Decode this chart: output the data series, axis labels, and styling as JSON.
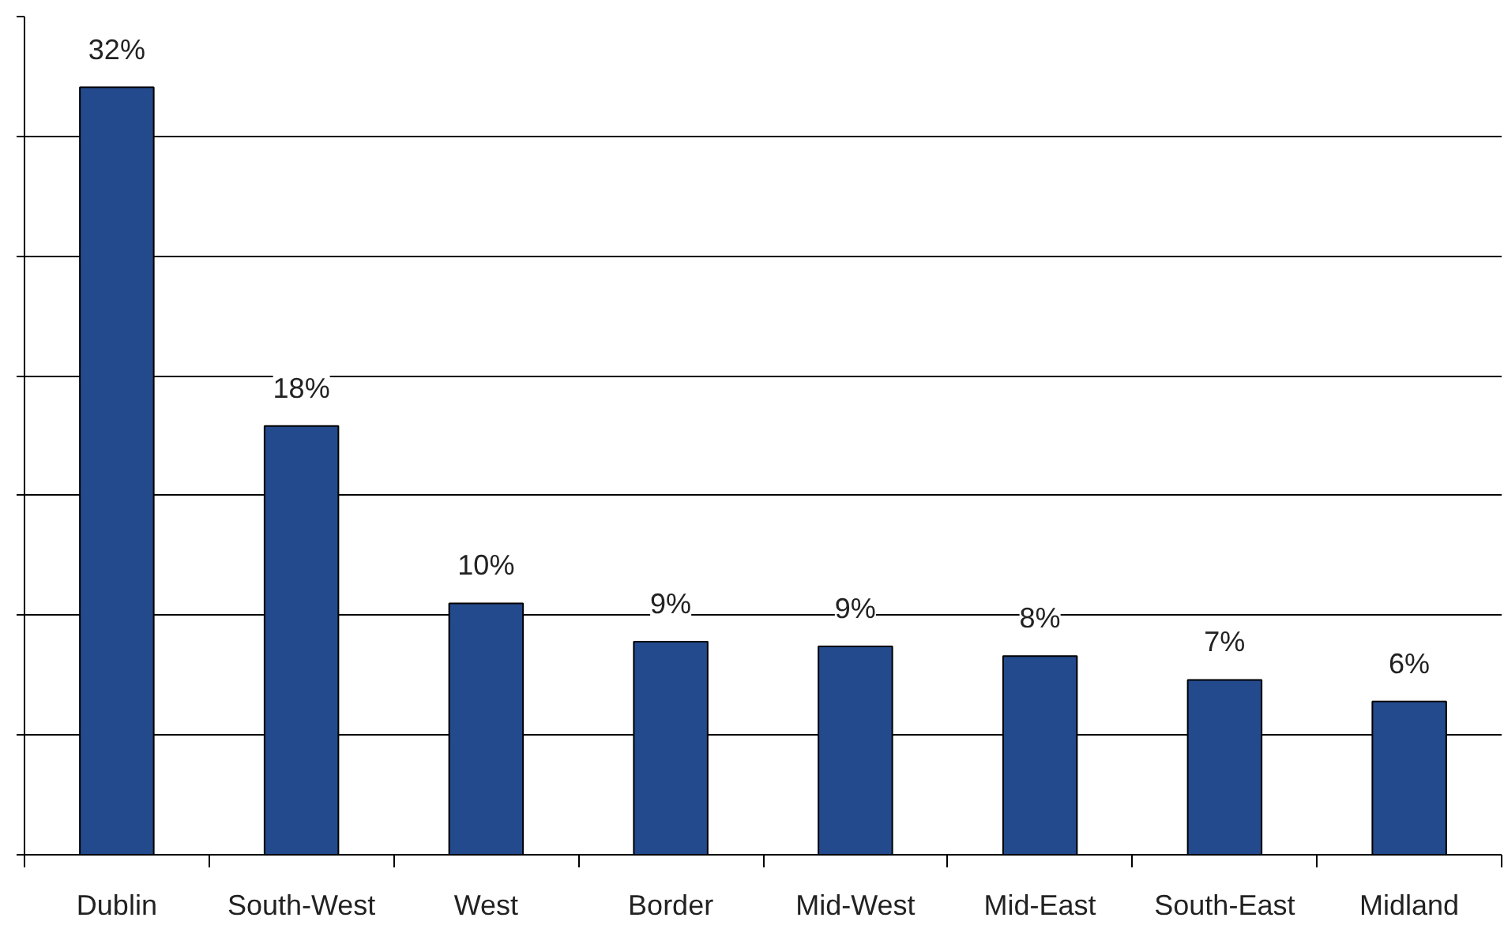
{
  "chart_data": {
    "type": "bar",
    "categories": [
      "Dublin",
      "South-West",
      "West",
      "Border",
      "Mid-West",
      "Mid-East",
      "South-East",
      "Midland"
    ],
    "values": [
      32.05,
      17.9,
      10.5,
      8.9,
      8.7,
      8.3,
      7.3,
      6.4
    ],
    "value_labels": [
      "32%",
      "18%",
      "10%",
      "9%",
      "9%",
      "8%",
      "7%",
      "6%"
    ],
    "color": "#234a8c",
    "ylim": [
      0,
      35
    ],
    "yticks": [
      0,
      5,
      10,
      15,
      20,
      25,
      30,
      35
    ],
    "grid": "y",
    "tick_labels": "x"
  }
}
